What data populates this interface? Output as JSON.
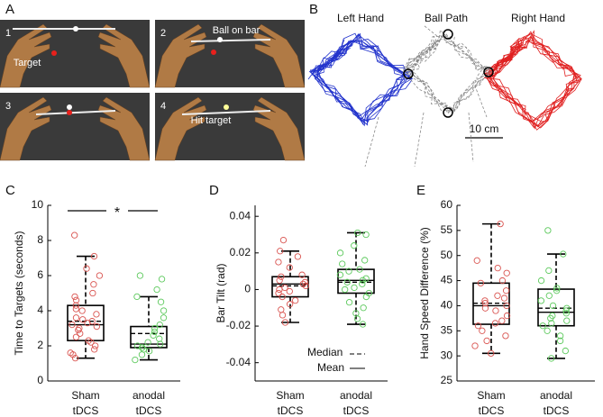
{
  "panel_labels": [
    "A",
    "B",
    "C",
    "D",
    "E"
  ],
  "panel_a": {
    "frames": [
      "1",
      "2",
      "3",
      "4"
    ],
    "labels": [
      "Target",
      "Ball on bar",
      "Hit target"
    ]
  },
  "panel_b": {
    "titles": [
      "Left Hand",
      "Ball Path",
      "Right Hand"
    ],
    "scale": "10 cm"
  },
  "chart_data": [
    {
      "type": "box",
      "ylabel": "Time to Targets (seconds)",
      "annotation": "*",
      "categories": [
        [
          "Sham",
          "tDCS"
        ],
        [
          "anodal",
          "tDCS"
        ]
      ],
      "ylim": [
        0,
        10
      ],
      "yticks": [
        0,
        2,
        4,
        6,
        8,
        10
      ],
      "series": [
        {
          "color": "#d9534f",
          "min": 1.3,
          "q1": 2.3,
          "median": 3.4,
          "mean": 3.2,
          "q3": 4.3,
          "max": 7.1,
          "points": [
            8.3,
            7.1,
            6.4,
            6,
            5.5,
            5,
            4.8,
            4.6,
            4.3,
            4.1,
            4,
            3.8,
            3.6,
            3.5,
            3.4,
            3.3,
            3.2,
            3.1,
            3,
            2.9,
            2.7,
            2.5,
            2.3,
            2.2,
            2,
            1.8,
            1.6,
            1.5,
            1.3
          ]
        },
        {
          "color": "#5cc95c",
          "min": 1.2,
          "q1": 1.9,
          "median": 2.7,
          "mean": 2.1,
          "q3": 3.1,
          "max": 4.8,
          "points": [
            6,
            5.8,
            5.2,
            4.8,
            4.5,
            4,
            3.6,
            3.2,
            3,
            2.8,
            2.6,
            2.4,
            2.2,
            2.1,
            2,
            1.9,
            1.9,
            1.8,
            1.7,
            1.5,
            1.2
          ]
        }
      ]
    },
    {
      "type": "box",
      "ylabel": "Bar Tilt (rad)",
      "legend_median": "Median",
      "legend_mean": "Mean",
      "categories": [
        [
          "Sham",
          "tDCS"
        ],
        [
          "anodal",
          "tDCS"
        ]
      ],
      "ylim": [
        -0.05,
        0.046
      ],
      "yticks": [
        -0.04,
        -0.02,
        0,
        0.02,
        0.04
      ],
      "series": [
        {
          "color": "#d9534f",
          "min": -0.018,
          "q1": -0.004,
          "median": 0.002,
          "mean": 0.003,
          "q3": 0.007,
          "max": 0.021,
          "points": [
            0.027,
            0.021,
            0.018,
            0.015,
            0.012,
            0.008,
            0.007,
            0.005,
            0.004,
            0.003,
            0.002,
            0.001,
            0,
            -0.001,
            -0.002,
            -0.004,
            -0.006,
            -0.008,
            -0.011,
            -0.014,
            -0.018
          ]
        },
        {
          "color": "#5cc95c",
          "min": -0.019,
          "q1": -0.002,
          "median": 0.004,
          "mean": 0.005,
          "q3": 0.011,
          "max": 0.031,
          "points": [
            0.031,
            0.03,
            0.024,
            0.02,
            0.016,
            0.014,
            0.011,
            0.01,
            0.008,
            0.006,
            0.005,
            0.004,
            0.003,
            0.001,
            0,
            -0.002,
            -0.004,
            -0.007,
            -0.01,
            -0.013,
            -0.016,
            -0.019
          ]
        }
      ]
    },
    {
      "type": "box",
      "ylabel": "Hand Speed Difference (%)",
      "categories": [
        [
          "Sham",
          "tDCS"
        ],
        [
          "anodal",
          "tDCS"
        ]
      ],
      "ylim": [
        25,
        60
      ],
      "yticks": [
        25,
        30,
        35,
        40,
        45,
        50,
        55,
        60
      ],
      "series": [
        {
          "color": "#d9534f",
          "min": 30.5,
          "q1": 36.3,
          "median": 40.5,
          "mean": 40,
          "q3": 44.5,
          "max": 56.3,
          "points": [
            56.3,
            49,
            47.5,
            46.5,
            45,
            44.5,
            43,
            42,
            41.5,
            41,
            40.5,
            40,
            39.5,
            39,
            38,
            37,
            36.5,
            36,
            35,
            34,
            33,
            32,
            30.5
          ]
        },
        {
          "color": "#5cc95c",
          "min": 29.5,
          "q1": 36,
          "median": 39.5,
          "mean": 38.7,
          "q3": 43.3,
          "max": 50.3,
          "points": [
            55,
            50.3,
            47,
            45,
            43.5,
            43,
            42,
            41,
            40,
            39.5,
            39,
            38.5,
            38,
            37.5,
            37,
            36.5,
            36,
            35,
            34,
            33,
            31,
            29.5
          ]
        }
      ]
    }
  ]
}
